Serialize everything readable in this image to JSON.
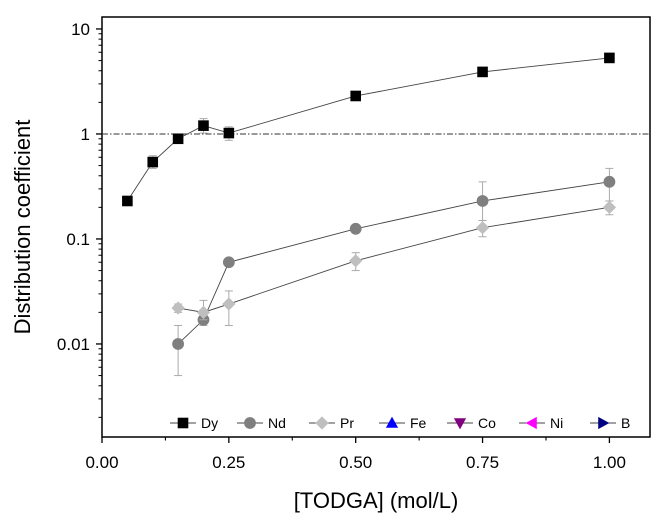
{
  "chart_data": {
    "type": "scatter",
    "xlabel": "[TODGA] (mol/L)",
    "ylabel": "Distribution coefficient",
    "xlim": [
      0.0,
      1.08
    ],
    "ylim": [
      0.0013,
      13
    ],
    "yscale": "log",
    "x_ticks": [
      "0.00",
      "0.25",
      "0.50",
      "0.75",
      "1.00"
    ],
    "y_ticks": [
      "0.01",
      "0.1",
      "1",
      "10"
    ],
    "reference_line": {
      "y": 1,
      "style": "dash-dot"
    },
    "legend_placement": "bottom",
    "series": [
      {
        "name": "Dy",
        "marker": "square",
        "color": "#000000",
        "points": [
          {
            "x": 0.05,
            "y": 0.23
          },
          {
            "x": 0.1,
            "y": 0.54,
            "err_low": 0.47,
            "err_high": 0.62
          },
          {
            "x": 0.15,
            "y": 0.9
          },
          {
            "x": 0.2,
            "y": 1.2,
            "err_low": 1.02,
            "err_high": 1.4
          },
          {
            "x": 0.25,
            "y": 1.02,
            "err_low": 0.87,
            "err_high": 1.17
          },
          {
            "x": 0.5,
            "y": 2.3,
            "err_low": 2.15,
            "err_high": 2.55
          },
          {
            "x": 0.75,
            "y": 3.9
          },
          {
            "x": 1.0,
            "y": 5.3
          }
        ]
      },
      {
        "name": "Nd",
        "marker": "circle",
        "color": "#7f7f7f",
        "points": [
          {
            "x": 0.15,
            "y": 0.01,
            "err_low": 0.005,
            "err_high": 0.015
          },
          {
            "x": 0.2,
            "y": 0.017,
            "err_low": 0.015,
            "err_high": 0.019
          },
          {
            "x": 0.25,
            "y": 0.06
          },
          {
            "x": 0.5,
            "y": 0.125
          },
          {
            "x": 0.75,
            "y": 0.23,
            "err_low": 0.15,
            "err_high": 0.35
          },
          {
            "x": 1.0,
            "y": 0.35,
            "err_low": 0.23,
            "err_high": 0.47
          }
        ]
      },
      {
        "name": "Pr",
        "marker": "diamond",
        "color": "#bfbfbf",
        "points": [
          {
            "x": 0.15,
            "y": 0.022,
            "err_low": 0.02,
            "err_high": 0.024
          },
          {
            "x": 0.2,
            "y": 0.02,
            "err_low": 0.017,
            "err_high": 0.026
          },
          {
            "x": 0.25,
            "y": 0.024,
            "err_low": 0.015,
            "err_high": 0.032
          },
          {
            "x": 0.5,
            "y": 0.062,
            "err_low": 0.05,
            "err_high": 0.074
          },
          {
            "x": 0.75,
            "y": 0.128,
            "err_low": 0.105,
            "err_high": 0.15
          },
          {
            "x": 1.0,
            "y": 0.2,
            "err_low": 0.17,
            "err_high": 0.23
          }
        ]
      },
      {
        "name": "Fe",
        "marker": "triangle-up",
        "color": "#0000ff",
        "points": []
      },
      {
        "name": "Co",
        "marker": "triangle-down",
        "color": "#800080",
        "points": []
      },
      {
        "name": "Ni",
        "marker": "triangle-left",
        "color": "#ff00ff",
        "points": []
      },
      {
        "name": "B",
        "marker": "triangle-right",
        "color": "#000080",
        "points": []
      }
    ]
  }
}
